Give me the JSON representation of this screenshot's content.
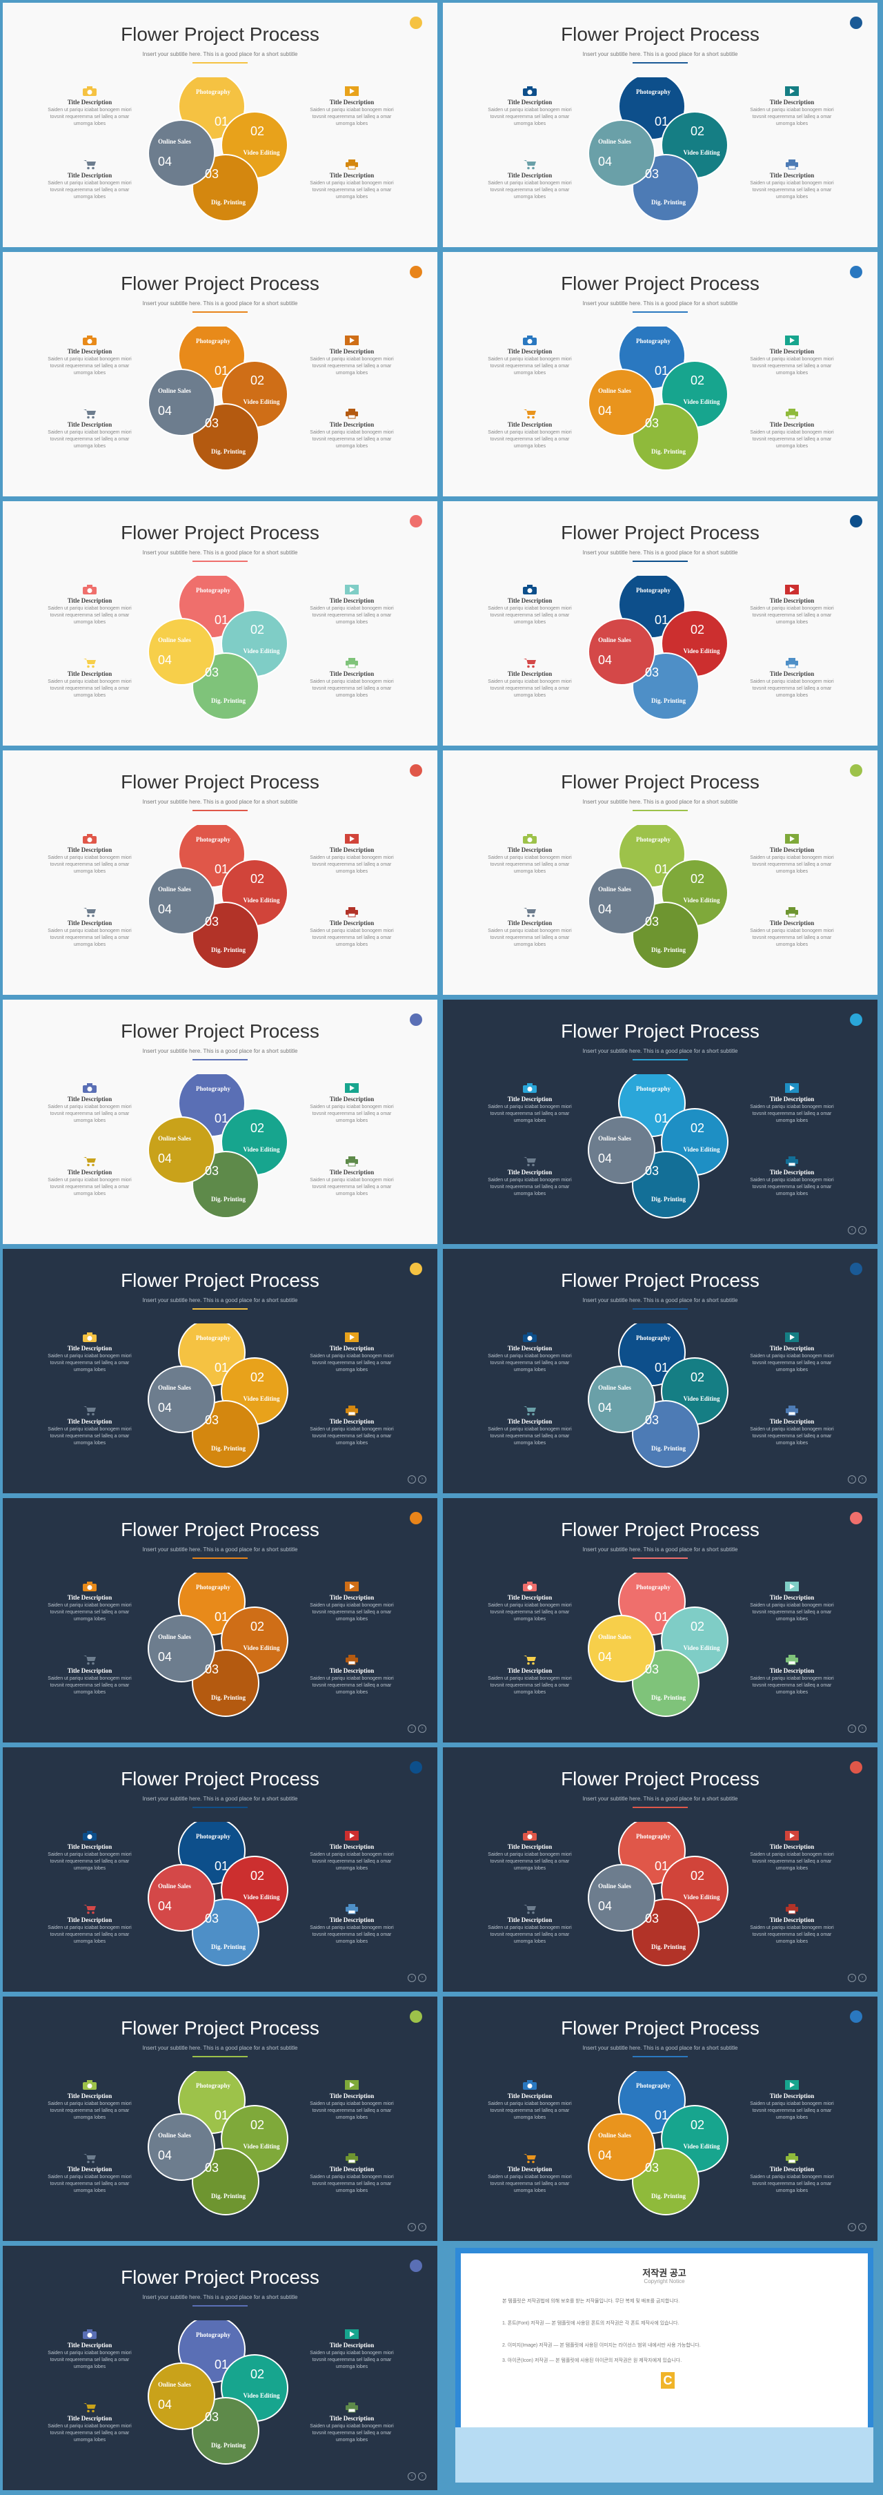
{
  "common": {
    "title": "Flower Project Process",
    "subtitle": "Insert your subtitle here. This is a good place for a short subtitle",
    "feature_title": "Title Description",
    "feature_text": "Saiden ut pariqu iciabat bonogem miori tovsnit requeremma sel lalleq a omar umornga lobes",
    "petals": {
      "photography": "Photography",
      "video": "Video Editing",
      "printing": "Dig. Printing",
      "online": "Online Sales"
    },
    "numbers": [
      "01",
      "02",
      "03",
      "04"
    ],
    "icons": [
      "camera-icon",
      "video-icon",
      "cart-icon",
      "printer-icon"
    ]
  },
  "slides": [
    {
      "theme": "light",
      "colors": [
        "#f5c242",
        "#e8a21b",
        "#d4870f",
        "#6d7d8e"
      ],
      "accent": "#f5c242"
    },
    {
      "theme": "light",
      "colors": [
        "#0d4f8b",
        "#157e84",
        "#4d7bb5",
        "#6aa0a8"
      ],
      "accent": "#1a5a96"
    },
    {
      "theme": "light",
      "colors": [
        "#e88a1a",
        "#cf6e17",
        "#b45a10",
        "#6d7d8e"
      ],
      "accent": "#e8841a"
    },
    {
      "theme": "light",
      "colors": [
        "#2a78c0",
        "#17a58e",
        "#8fba3b",
        "#e9941d"
      ],
      "accent": "#2a78c0"
    },
    {
      "theme": "light",
      "colors": [
        "#ef6f6c",
        "#7fcdc6",
        "#7fc37a",
        "#f7cf4a"
      ],
      "accent": "#ef6f6c"
    },
    {
      "theme": "light",
      "colors": [
        "#0d4f8b",
        "#cc2f2f",
        "#4e8fc7",
        "#d44848"
      ],
      "accent": "#0d4f8b"
    },
    {
      "theme": "light",
      "colors": [
        "#e05749",
        "#d1443a",
        "#b23328",
        "#6d7d8e"
      ],
      "accent": "#e05749"
    },
    {
      "theme": "light",
      "colors": [
        "#9dc24a",
        "#7fa93a",
        "#6e9530",
        "#6d7d8e"
      ],
      "accent": "#9dc24a"
    },
    {
      "theme": "light",
      "colors": [
        "#5a6fb5",
        "#17a58e",
        "#5e8a4a",
        "#c9a21a"
      ],
      "accent": "#5a6fb5"
    },
    {
      "theme": "dark",
      "colors": [
        "#2aa6d9",
        "#1e8fc4",
        "#136f97",
        "#6d7d8e"
      ],
      "accent": "#2aa6d9"
    },
    {
      "theme": "dark",
      "colors": [
        "#f5c242",
        "#e8a21b",
        "#d4870f",
        "#6d7d8e"
      ],
      "accent": "#f5c242"
    },
    {
      "theme": "dark",
      "colors": [
        "#0d4f8b",
        "#157e84",
        "#4d7bb5",
        "#6aa0a8"
      ],
      "accent": "#1a5a96"
    },
    {
      "theme": "dark",
      "colors": [
        "#e88a1a",
        "#cf6e17",
        "#b45a10",
        "#6d7d8e"
      ],
      "accent": "#e8841a"
    },
    {
      "theme": "dark",
      "colors": [
        "#ef6f6c",
        "#7fcdc6",
        "#7fc37a",
        "#f7cf4a"
      ],
      "accent": "#ef6f6c"
    },
    {
      "theme": "dark",
      "colors": [
        "#0d4f8b",
        "#cc2f2f",
        "#4e8fc7",
        "#d44848"
      ],
      "accent": "#0d4f8b"
    },
    {
      "theme": "dark",
      "colors": [
        "#e05749",
        "#d1443a",
        "#b23328",
        "#6d7d8e"
      ],
      "accent": "#e05749"
    },
    {
      "theme": "dark",
      "colors": [
        "#9dc24a",
        "#7fa93a",
        "#6e9530",
        "#6d7d8e"
      ],
      "accent": "#9dc24a"
    },
    {
      "theme": "dark",
      "colors": [
        "#2a78c0",
        "#17a58e",
        "#8fba3b",
        "#e9941d"
      ],
      "accent": "#2a78c0"
    },
    {
      "theme": "dark",
      "colors": [
        "#5a6fb5",
        "#17a58e",
        "#5e8a4a",
        "#c9a21a"
      ],
      "accent": "#5a6fb5"
    }
  ],
  "copyright": {
    "title": "저작권 공고",
    "subtitle": "Copyright Notice",
    "paragraphs": [
      "본 템플릿은 저작권법에 의해 보호를 받는 저작물입니다. 무단 복제 및 배포를 금지합니다.",
      "1. 폰트(Font) 저작권 — 본 템플릿에 사용된 폰트의 저작권은 각 폰트 제작사에 있습니다.",
      "2. 이미지(Image) 저작권 — 본 템플릿에 사용된 이미지는 라이선스 범위 내에서만 사용 가능합니다.",
      "3. 아이콘(Icon) 저작권 — 본 템플릿에 사용된 아이콘의 저작권은 원 제작자에게 있습니다."
    ],
    "logo": "C"
  }
}
